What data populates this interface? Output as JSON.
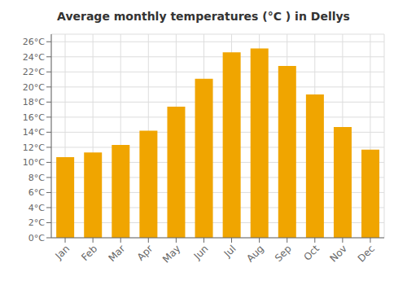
{
  "chart_data": {
    "type": "bar",
    "title": "Average monthly temperatures (°C ) in Dellys",
    "categories": [
      "Jan",
      "Feb",
      "Mar",
      "Apr",
      "May",
      "Jun",
      "Jul",
      "Aug",
      "Sep",
      "Oct",
      "Nov",
      "Dec"
    ],
    "values": [
      10.7,
      11.3,
      12.3,
      14.2,
      17.4,
      21.1,
      24.6,
      25.1,
      22.8,
      19.0,
      14.7,
      11.7
    ],
    "color": "#F0A500",
    "ylim": [
      0,
      27
    ],
    "yticks": [
      {
        "value": 0,
        "label": "0°C"
      },
      {
        "value": 2,
        "label": "2°C"
      },
      {
        "value": 4,
        "label": "4°C"
      },
      {
        "value": 6,
        "label": "6°C"
      },
      {
        "value": 8,
        "label": "8°C"
      },
      {
        "value": 10,
        "label": "10°C"
      },
      {
        "value": 12,
        "label": "12°C"
      },
      {
        "value": 14,
        "label": "14°C"
      },
      {
        "value": 16,
        "label": "16°C"
      },
      {
        "value": 18,
        "label": "18°C"
      },
      {
        "value": 20,
        "label": "20°C"
      },
      {
        "value": 22,
        "label": "22°C"
      },
      {
        "value": 24,
        "label": "24°C"
      },
      {
        "value": 26,
        "label": "26°C"
      }
    ],
    "grid": true
  }
}
